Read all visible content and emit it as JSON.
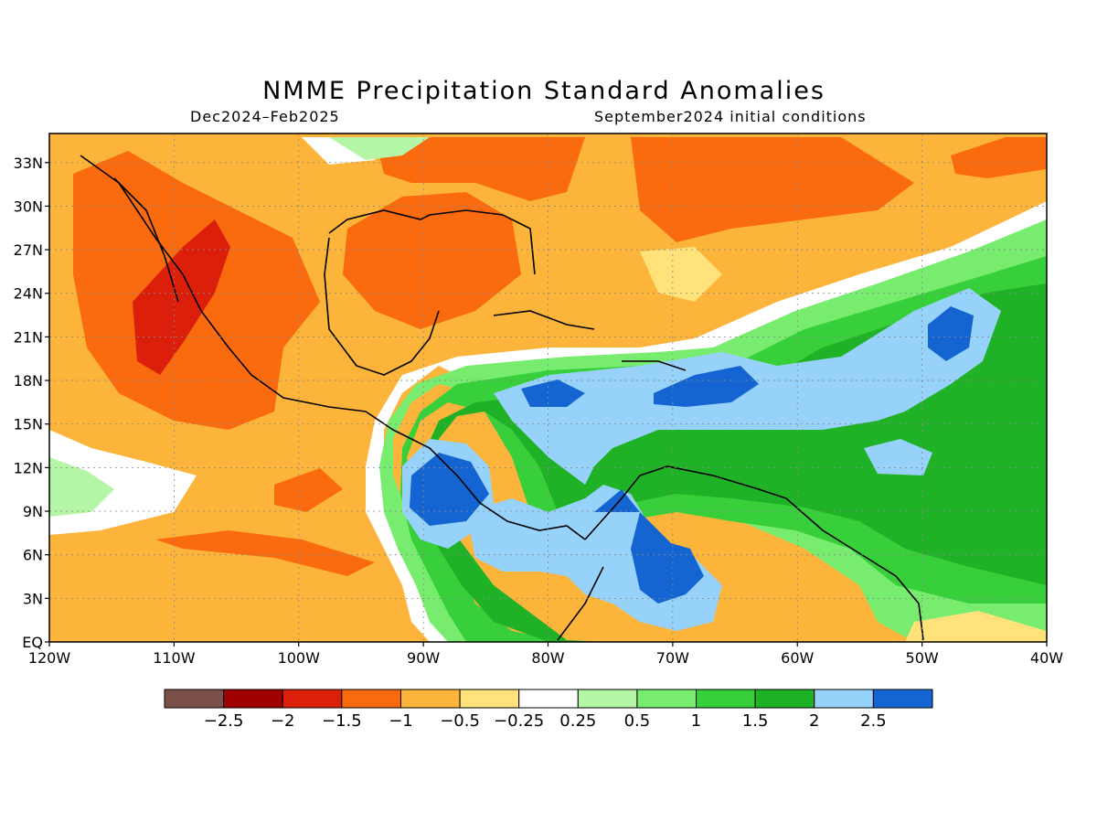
{
  "title": "NMME Precipitation Standard Anomalies",
  "subtitle_left": "Dec2024–Feb2025",
  "subtitle_right": "September2024 initial conditions",
  "map": {
    "lon_range": [
      -120,
      -40
    ],
    "lat_range": [
      0,
      35
    ],
    "lon_ticks": [
      "120W",
      "110W",
      "100W",
      "90W",
      "80W",
      "70W",
      "60W",
      "50W",
      "40W"
    ],
    "lat_ticks": [
      "EQ",
      "3N",
      "6N",
      "9N",
      "12N",
      "15N",
      "18N",
      "21N",
      "24N",
      "27N",
      "30N",
      "33N"
    ],
    "grid": "dotted"
  },
  "colorbar": {
    "colors": [
      "#7a5048",
      "#a00000",
      "#dc1f0a",
      "#fa6a0f",
      "#fdb43a",
      "#ffe27a",
      "#ffffff",
      "#b4f5a6",
      "#78ec6e",
      "#37cf3a",
      "#20b226",
      "#96d2fa",
      "#1464d2"
    ],
    "labels": [
      "−2.5",
      "−2",
      "−1.5",
      "−1",
      "−0.5",
      "−0.25",
      "0.25",
      "0.5",
      "1",
      "1.5",
      "2",
      "2.5"
    ]
  }
}
